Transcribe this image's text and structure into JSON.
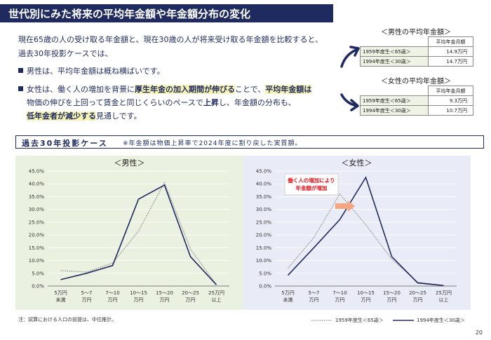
{
  "header": {
    "title": "世代別にみた将来の平均年金額や年金額分布の変化"
  },
  "intro": {
    "line1": "現在65歳の人の受け取る年金額と、現在30歳の人が将来受け取る年金額を比較すると、",
    "line2": "過去30年投影ケースでは、"
  },
  "bullets": {
    "male": "男性は、平均年金額は概ね横ばいです。",
    "female": {
      "p1": "女性は、働く人の増加を背景に",
      "h1": "厚生年金の加入期間が伸びる",
      "p2": "ことで、",
      "h2": "平均年金額は",
      "p3": "物価の伸びを上回って賃金と同じくらいのペースで",
      "b1": "上昇",
      "p4": "し、年金額の分布も、",
      "h3": "低年金者が減少する",
      "p5": "見通しです。"
    }
  },
  "male_table": {
    "title": "＜男性の平均年金額＞",
    "header": "平均年金月額",
    "rows": [
      {
        "label": "1959年度生＜65歳＞",
        "value": "14.9万円"
      },
      {
        "label": "1994年度生＜30歳＞",
        "value": "14.7万円"
      }
    ]
  },
  "female_table": {
    "title": "＜女性の平均年金額＞",
    "header": "平均年金月額",
    "rows": [
      {
        "label": "1959年度生＜65歳＞",
        "value": "9.3万円"
      },
      {
        "label": "1994年度生＜30歳＞",
        "value": "10.7万円"
      }
    ]
  },
  "section": {
    "title": "過去30年投影ケース",
    "note": "※年金額は物価上昇率で2024年度に割り戻した実質額。"
  },
  "footnote": "注：試算における人口の前提は、中位推計。",
  "legend": {
    "dotted": "1959年度生＜65歳＞",
    "solid": "1994年度生＜30歳＞"
  },
  "page_number": "20",
  "colors": {
    "navy": "#1f2a5e",
    "male_panel_bg": "#eaf1e1",
    "female_panel_bg": "#e9ecf6",
    "highlight": "#f6f3b4",
    "annotation_red": "#e8131b",
    "arrow_salmon": "#f4a582"
  },
  "chart_data": [
    {
      "type": "line",
      "title": "＜男性＞",
      "categories": [
        [
          "5万円",
          "未満"
        ],
        [
          "5～7",
          "万円"
        ],
        [
          "7～10",
          "万円"
        ],
        [
          "10～15",
          "万円"
        ],
        [
          "15～20",
          "万円"
        ],
        [
          "20～25",
          "万円"
        ],
        [
          "25万円",
          "以上"
        ]
      ],
      "ylim": [
        0,
        45
      ],
      "yticks": [
        "0.0%",
        "5.0%",
        "10.0%",
        "15.0%",
        "20.0%",
        "25.0%",
        "30.0%",
        "35.0%",
        "40.0%",
        "45.0%"
      ],
      "series": [
        {
          "name": "1959年度生＜65歳＞",
          "style": "dotted",
          "values": [
            6.0,
            5.5,
            9.0,
            21.5,
            40.5,
            14.5,
            0.5
          ]
        },
        {
          "name": "1994年度生＜30歳＞",
          "style": "solid",
          "values": [
            2.5,
            5.0,
            8.0,
            34.0,
            39.5,
            11.5,
            0.5
          ]
        }
      ]
    },
    {
      "type": "line",
      "title": "＜女性＞",
      "categories": [
        [
          "5万円",
          "未満"
        ],
        [
          "5～7",
          "万円"
        ],
        [
          "7～10",
          "万円"
        ],
        [
          "10～15",
          "万円"
        ],
        [
          "15～20",
          "万円"
        ],
        [
          "20～25",
          "万円"
        ],
        [
          "25万円",
          "以上"
        ]
      ],
      "ylim": [
        0,
        45
      ],
      "yticks": [
        "0.0%",
        "5.0%",
        "10.0%",
        "15.0%",
        "20.0%",
        "25.0%",
        "30.0%",
        "35.0%",
        "40.0%",
        "45.0%"
      ],
      "annotation": [
        "働く人の増加により",
        "年金額が増加"
      ],
      "series": [
        {
          "name": "1959年度生＜65歳＞",
          "style": "dotted",
          "values": [
            7.0,
            19.0,
            36.0,
            24.0,
            10.5,
            1.5,
            0.2
          ]
        },
        {
          "name": "1994年度生＜30歳＞",
          "style": "solid",
          "values": [
            4.2,
            15.0,
            26.0,
            42.5,
            11.5,
            1.2,
            0.2
          ]
        }
      ]
    }
  ]
}
